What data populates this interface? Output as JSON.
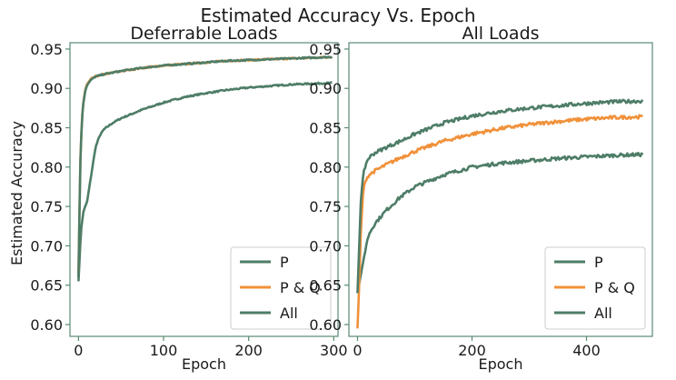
{
  "figure": {
    "suptitle": "Estimated Accuracy Vs. Epoch"
  },
  "colors": {
    "P": "#4e7d67",
    "P & Q": "#f0913a",
    "All": "#4e7d67",
    "axes": "#5a8a73",
    "text": "#1a1a1a"
  },
  "chart_data": [
    {
      "type": "line",
      "title": "Deferrable Loads",
      "xlabel": "Epoch",
      "ylabel": "Estimated Accuracy",
      "xlim": [
        -10,
        305
      ],
      "ylim": [
        0.585,
        0.958
      ],
      "xticks": [
        0,
        100,
        200,
        300
      ],
      "xtick_labels": [
        "0",
        "100",
        "200",
        "300"
      ],
      "yticks": [
        0.6,
        0.65,
        0.7,
        0.75,
        0.8,
        0.85,
        0.9,
        0.95
      ],
      "ytick_labels": [
        "0.60",
        "0.65",
        "0.70",
        "0.75",
        "0.80",
        "0.85",
        "0.90",
        "0.95"
      ],
      "grid": false,
      "legend": {
        "placement": "bottom-right",
        "entries": [
          "P",
          "P & Q",
          "All"
        ]
      },
      "series": [
        {
          "name": "P",
          "points": [
            [
              0,
              0.655
            ],
            [
              3,
              0.72
            ],
            [
              6,
              0.745
            ],
            [
              10,
              0.755
            ],
            [
              15,
              0.79
            ],
            [
              20,
              0.825
            ],
            [
              25,
              0.84
            ],
            [
              30,
              0.848
            ],
            [
              40,
              0.856
            ],
            [
              50,
              0.862
            ],
            [
              75,
              0.873
            ],
            [
              100,
              0.882
            ],
            [
              125,
              0.889
            ],
            [
              150,
              0.894
            ],
            [
              175,
              0.898
            ],
            [
              200,
              0.901
            ],
            [
              225,
              0.903
            ],
            [
              250,
              0.905
            ],
            [
              275,
              0.906
            ],
            [
              298,
              0.907
            ]
          ]
        },
        {
          "name": "P & Q",
          "points": [
            [
              0,
              0.665
            ],
            [
              2,
              0.8
            ],
            [
              4,
              0.86
            ],
            [
              6,
              0.885
            ],
            [
              8,
              0.898
            ],
            [
              10,
              0.905
            ],
            [
              15,
              0.912
            ],
            [
              20,
              0.915
            ],
            [
              30,
              0.918
            ],
            [
              50,
              0.922
            ],
            [
              75,
              0.926
            ],
            [
              100,
              0.929
            ],
            [
              125,
              0.931
            ],
            [
              150,
              0.933
            ],
            [
              175,
              0.935
            ],
            [
              200,
              0.936
            ],
            [
              225,
              0.937
            ],
            [
              250,
              0.938
            ],
            [
              275,
              0.939
            ],
            [
              298,
              0.94
            ]
          ]
        },
        {
          "name": "All",
          "points": [
            [
              0,
              0.66
            ],
            [
              2,
              0.8
            ],
            [
              4,
              0.86
            ],
            [
              6,
              0.884
            ],
            [
              8,
              0.897
            ],
            [
              10,
              0.904
            ],
            [
              15,
              0.911
            ],
            [
              20,
              0.915
            ],
            [
              30,
              0.918
            ],
            [
              50,
              0.922
            ],
            [
              75,
              0.926
            ],
            [
              100,
              0.929
            ],
            [
              125,
              0.931
            ],
            [
              150,
              0.933
            ],
            [
              175,
              0.935
            ],
            [
              200,
              0.936
            ],
            [
              225,
              0.937
            ],
            [
              250,
              0.938
            ],
            [
              275,
              0.939
            ],
            [
              298,
              0.94
            ]
          ]
        }
      ]
    },
    {
      "type": "line",
      "title": "All Loads",
      "xlabel": "Epoch",
      "ylabel": "",
      "xlim": [
        -15,
        515
      ],
      "ylim": [
        0.585,
        0.958
      ],
      "xticks": [
        0,
        200,
        400
      ],
      "xtick_labels": [
        "0",
        "200",
        "400"
      ],
      "yticks": [
        0.6,
        0.65,
        0.7,
        0.75,
        0.8,
        0.85,
        0.9,
        0.95
      ],
      "ytick_labels": [
        "0.60",
        "0.65",
        "0.70",
        "0.75",
        "0.80",
        "0.85",
        "0.90",
        "0.95"
      ],
      "grid": false,
      "legend": {
        "placement": "bottom-right",
        "entries": [
          "P",
          "P & Q",
          "All"
        ]
      },
      "series": [
        {
          "name": "P",
          "points": [
            [
              0,
              0.64
            ],
            [
              5,
              0.66
            ],
            [
              10,
              0.68
            ],
            [
              15,
              0.7
            ],
            [
              20,
              0.715
            ],
            [
              30,
              0.728
            ],
            [
              50,
              0.745
            ],
            [
              75,
              0.762
            ],
            [
              100,
              0.775
            ],
            [
              150,
              0.79
            ],
            [
              200,
              0.8
            ],
            [
              250,
              0.805
            ],
            [
              300,
              0.808
            ],
            [
              350,
              0.811
            ],
            [
              400,
              0.813
            ],
            [
              450,
              0.815
            ],
            [
              498,
              0.816
            ]
          ]
        },
        {
          "name": "P & Q",
          "points": [
            [
              0,
              0.595
            ],
            [
              3,
              0.65
            ],
            [
              6,
              0.72
            ],
            [
              10,
              0.77
            ],
            [
              15,
              0.785
            ],
            [
              20,
              0.79
            ],
            [
              30,
              0.795
            ],
            [
              50,
              0.803
            ],
            [
              75,
              0.812
            ],
            [
              100,
              0.82
            ],
            [
              150,
              0.833
            ],
            [
              200,
              0.842
            ],
            [
              250,
              0.849
            ],
            [
              300,
              0.854
            ],
            [
              350,
              0.858
            ],
            [
              400,
              0.861
            ],
            [
              450,
              0.863
            ],
            [
              498,
              0.864
            ]
          ]
        },
        {
          "name": "All",
          "points": [
            [
              0,
              0.64
            ],
            [
              3,
              0.7
            ],
            [
              6,
              0.76
            ],
            [
              10,
              0.79
            ],
            [
              15,
              0.805
            ],
            [
              20,
              0.812
            ],
            [
              30,
              0.818
            ],
            [
              50,
              0.825
            ],
            [
              75,
              0.833
            ],
            [
              100,
              0.842
            ],
            [
              150,
              0.856
            ],
            [
              200,
              0.865
            ],
            [
              250,
              0.871
            ],
            [
              300,
              0.875
            ],
            [
              350,
              0.878
            ],
            [
              400,
              0.881
            ],
            [
              450,
              0.883
            ],
            [
              498,
              0.884
            ]
          ]
        }
      ]
    }
  ]
}
